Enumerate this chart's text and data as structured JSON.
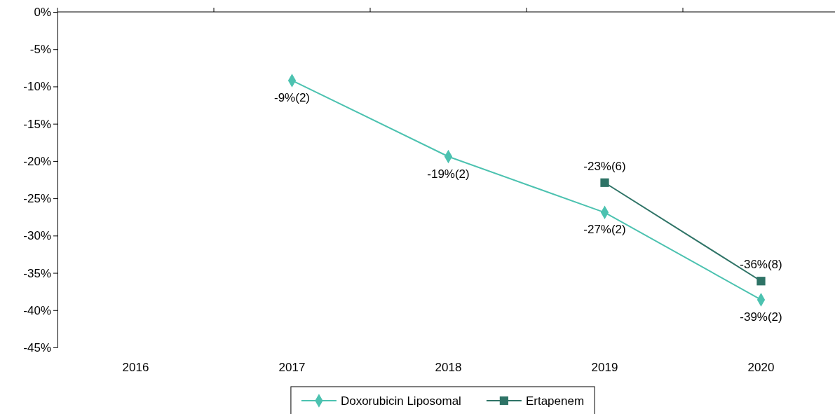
{
  "chart_data": {
    "type": "line",
    "categories": [
      "2016",
      "2017",
      "2018",
      "2019",
      "2020"
    ],
    "series": [
      {
        "name": "Doxorubicin Liposomal",
        "color": "#4cc2b0",
        "marker": "diamond",
        "values": [
          null,
          -9.2,
          -19.4,
          -26.9,
          -38.6
        ],
        "value_labels": [
          null,
          "-9%(2)",
          "-19%(2)",
          "-27%(2)",
          "-39%(2)"
        ]
      },
      {
        "name": "Ertapenem",
        "color": "#2e7366",
        "marker": "square",
        "values": [
          null,
          null,
          null,
          -22.9,
          -36.1
        ],
        "value_labels": [
          null,
          null,
          null,
          "-23%(6)",
          "-36%(8)"
        ]
      }
    ],
    "ylim": [
      -45,
      0
    ],
    "yticks": [
      {
        "value": 0,
        "label": "0%"
      },
      {
        "value": -5,
        "label": "-5%"
      },
      {
        "value": -10,
        "label": "-10%"
      },
      {
        "value": -15,
        "label": "-15%"
      },
      {
        "value": -20,
        "label": "-20%"
      },
      {
        "value": -25,
        "label": "-25%"
      },
      {
        "value": -30,
        "label": "-30%"
      },
      {
        "value": -35,
        "label": "-35%"
      },
      {
        "value": -40,
        "label": "-40%"
      },
      {
        "value": -45,
        "label": "-45%"
      }
    ],
    "grid": false,
    "legend": "bottom"
  }
}
